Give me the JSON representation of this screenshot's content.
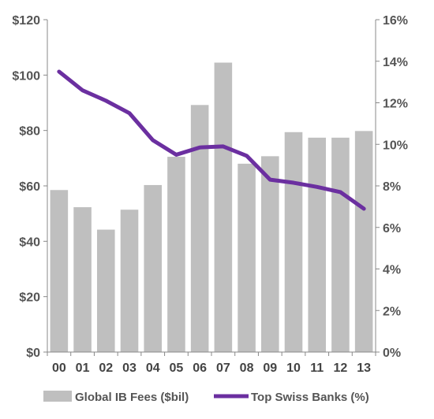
{
  "chart_data": {
    "type": "bar+line",
    "categories": [
      "00",
      "01",
      "02",
      "03",
      "04",
      "05",
      "06",
      "07",
      "08",
      "09",
      "10",
      "11",
      "12",
      "13"
    ],
    "series": [
      {
        "name": "Global IB Fees ($bil)",
        "type": "bar",
        "axis": "left",
        "color": "#bfbfbf",
        "values": [
          58.5,
          52.3,
          44.2,
          51.4,
          60.3,
          70.5,
          89.2,
          104.5,
          68.0,
          70.7,
          79.4,
          77.4,
          77.4,
          79.8
        ]
      },
      {
        "name": "Top Swiss Banks (%)",
        "type": "line",
        "axis": "right",
        "color": "#6b2fa0",
        "values": [
          13.5,
          12.6,
          12.1,
          11.5,
          10.2,
          9.5,
          9.85,
          9.9,
          9.45,
          8.3,
          8.15,
          7.95,
          7.7,
          6.9
        ]
      }
    ],
    "y_left": {
      "range": [
        0,
        120
      ],
      "ticks": [
        0,
        20,
        40,
        60,
        80,
        100,
        120
      ],
      "tick_labels": [
        "$0",
        "$20",
        "$40",
        "$60",
        "$80",
        "$100",
        "$120"
      ]
    },
    "y_right": {
      "range": [
        0,
        16
      ],
      "ticks": [
        0,
        2,
        4,
        6,
        8,
        10,
        12,
        14,
        16
      ],
      "tick_labels": [
        "0%",
        "2%",
        "4%",
        "6%",
        "8%",
        "10%",
        "12%",
        "14%",
        "16%"
      ]
    },
    "grid": false,
    "legend": {
      "position": "bottom",
      "entries": [
        "Global IB Fees ($bil)",
        "Top Swiss Banks (%)"
      ]
    }
  }
}
